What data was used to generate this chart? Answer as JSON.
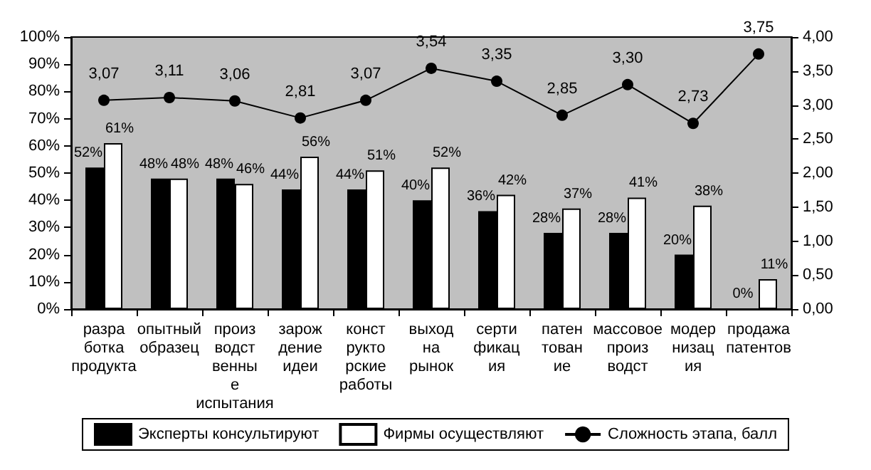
{
  "chart_data": {
    "type": "bar",
    "categories": [
      "разработка продукта",
      "опытный образец",
      "производственные испытания",
      "зарождение идеи",
      "конструкторские работы",
      "выход на рынок",
      "сертификация",
      "патентование",
      "массовое производст",
      "модернизация",
      "продажа патентов"
    ],
    "series": [
      {
        "name": "Эксперты консультируют",
        "color": "#000000",
        "values": [
          52,
          48,
          48,
          44,
          44,
          40,
          36,
          28,
          28,
          20,
          0
        ],
        "value_labels": [
          "52%",
          "48%",
          "48%",
          "44%",
          "44%",
          "40%",
          "36%",
          "28%",
          "28%",
          "20%",
          "0%"
        ]
      },
      {
        "name": "Фирмы осуществляют",
        "color": "#ffffff",
        "values": [
          61,
          48,
          46,
          56,
          51,
          52,
          42,
          37,
          41,
          38,
          11
        ],
        "value_labels": [
          "61%",
          "48%",
          "46%",
          "56%",
          "51%",
          "52%",
          "42%",
          "37%",
          "41%",
          "38%",
          "11%"
        ]
      },
      {
        "name": "Сложность этапа, балл",
        "type": "line",
        "axis": "y2",
        "color": "#000000",
        "values": [
          3.07,
          3.11,
          3.06,
          2.81,
          3.07,
          3.54,
          3.35,
          2.85,
          3.3,
          2.73,
          3.75
        ],
        "value_labels": [
          "3,07",
          "3,11",
          "3,06",
          "2,81",
          "3,07",
          "3,54",
          "3,35",
          "2,85",
          "3,30",
          "2,73",
          "3,75"
        ]
      }
    ],
    "ylim": [
      0,
      100
    ],
    "yticks": [
      {
        "value": 0,
        "label": "0%"
      },
      {
        "value": 10,
        "label": "10%"
      },
      {
        "value": 20,
        "label": "20%"
      },
      {
        "value": 30,
        "label": "30%"
      },
      {
        "value": 40,
        "label": "40%"
      },
      {
        "value": 50,
        "label": "50%"
      },
      {
        "value": 60,
        "label": "60%"
      },
      {
        "value": 70,
        "label": "70%"
      },
      {
        "value": 80,
        "label": "80%"
      },
      {
        "value": 90,
        "label": "90%"
      },
      {
        "value": 100,
        "label": "100%"
      }
    ],
    "y2lim": [
      0,
      4
    ],
    "y2ticks": [
      {
        "value": 0,
        "label": "0,00"
      },
      {
        "value": 0.5,
        "label": "0,50"
      },
      {
        "value": 1,
        "label": "1,00"
      },
      {
        "value": 1.5,
        "label": "1,50"
      },
      {
        "value": 2,
        "label": "2,00"
      },
      {
        "value": 2.5,
        "label": "2,50"
      },
      {
        "value": 3,
        "label": "3,00"
      },
      {
        "value": 3.5,
        "label": "3,50"
      },
      {
        "value": 4,
        "label": "4,00"
      }
    ],
    "legend": "bottom",
    "grid": false,
    "marker": "circle",
    "line_style": "solid"
  }
}
